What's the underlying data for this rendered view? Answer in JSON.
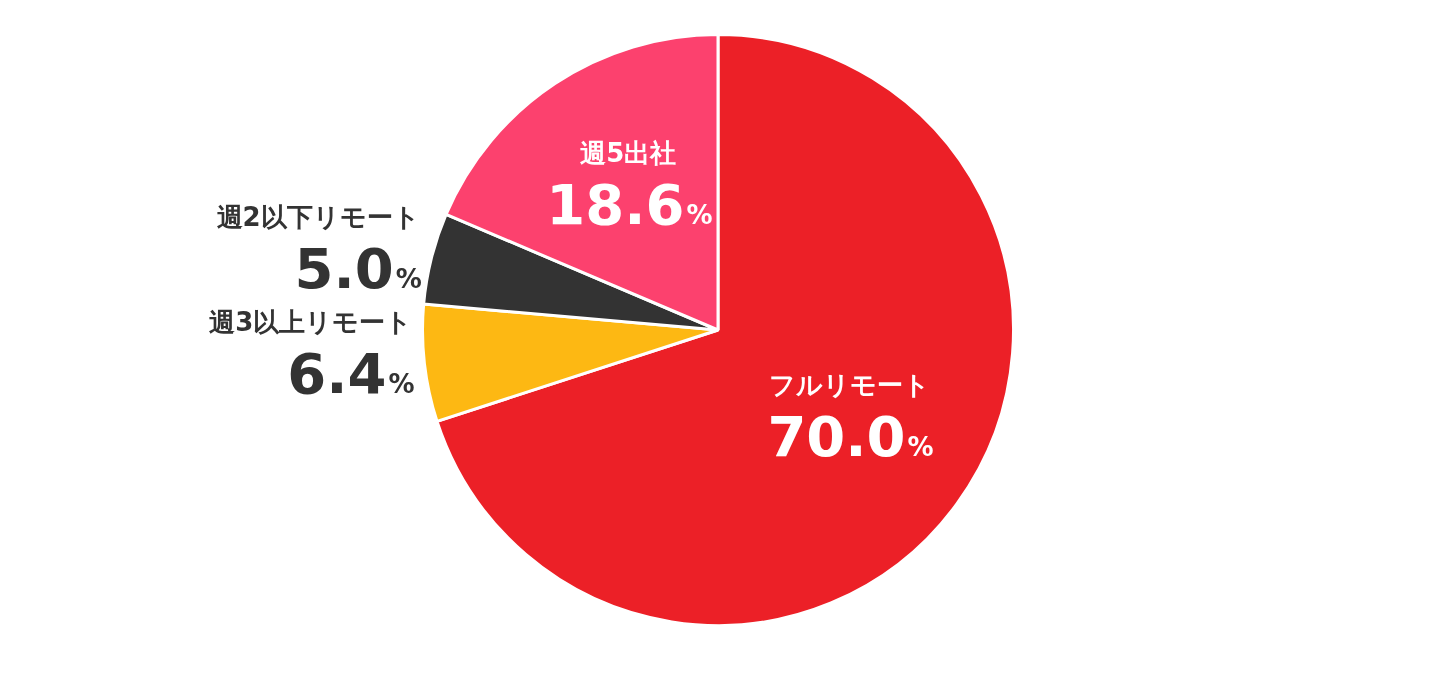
{
  "chart_data": {
    "type": "pie",
    "categories": [
      "フルリモート",
      "週3以上リモート",
      "週2以下リモート",
      "週5出社"
    ],
    "values": [
      70.0,
      6.4,
      5.0,
      18.6
    ],
    "colors": [
      "#ec2027",
      "#fdb813",
      "#333333",
      "#fc416e"
    ],
    "value_labels": [
      "70.0%",
      "6.4%",
      "5.0%",
      "18.6%"
    ],
    "legend": false
  }
}
